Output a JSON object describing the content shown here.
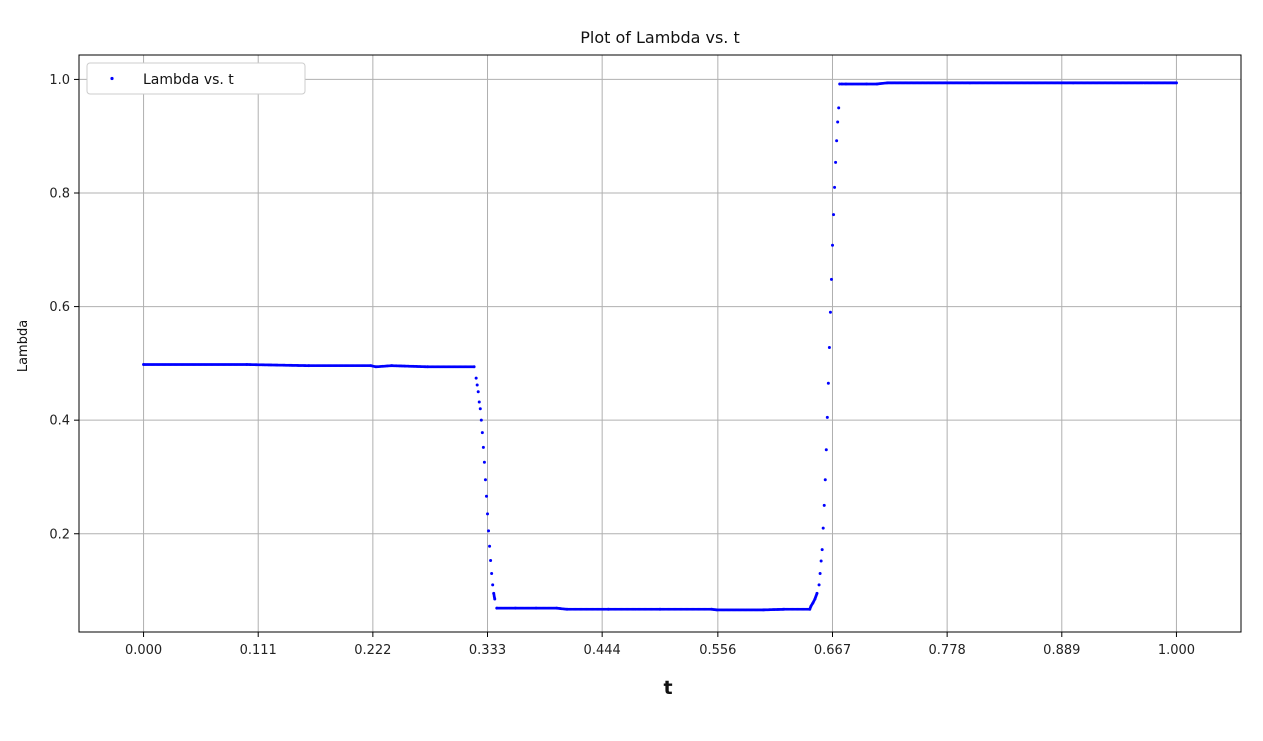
{
  "chart_data": {
    "type": "scatter",
    "title": "Plot of Lambda vs. t",
    "xlabel": "t",
    "ylabel": "Lambda",
    "xlim": [
      -0.0625,
      1.0625
    ],
    "ylim": [
      0.027,
      1.043
    ],
    "grid": true,
    "legend_position": "top-left",
    "x_ticks": [
      0.0,
      0.111,
      0.222,
      0.333,
      0.444,
      0.556,
      0.667,
      0.778,
      0.889,
      1.0
    ],
    "x_tick_labels": [
      "0.000",
      "0.111",
      "0.222",
      "0.333",
      "0.444",
      "0.556",
      "0.667",
      "0.778",
      "0.889",
      "1.000"
    ],
    "y_ticks": [
      0.2,
      0.4,
      0.6,
      0.8,
      1.0
    ],
    "y_tick_labels": [
      "0.2",
      "0.4",
      "0.6",
      "0.8",
      "1.0"
    ],
    "series": [
      {
        "name": "Lambda vs. t",
        "color": "#0000ff",
        "marker": "dot",
        "x": [
          0.0,
          0.1,
          0.16,
          0.22,
          0.225,
          0.24,
          0.275,
          0.32,
          0.322,
          0.323,
          0.324,
          0.325,
          0.326,
          0.327,
          0.328,
          0.329,
          0.33,
          0.331,
          0.332,
          0.333,
          0.334,
          0.335,
          0.336,
          0.337,
          0.338,
          0.339,
          0.34,
          0.342,
          0.36,
          0.38,
          0.4,
          0.41,
          0.45,
          0.5,
          0.55,
          0.555,
          0.6,
          0.62,
          0.645,
          0.646,
          0.648,
          0.65,
          0.652,
          0.654,
          0.655,
          0.656,
          0.657,
          0.658,
          0.659,
          0.66,
          0.661,
          0.662,
          0.663,
          0.664,
          0.665,
          0.666,
          0.667,
          0.668,
          0.669,
          0.67,
          0.671,
          0.672,
          0.673,
          0.674,
          0.676,
          0.68,
          0.7,
          0.71,
          0.72,
          0.8,
          0.9,
          1.0
        ],
        "y": [
          0.498,
          0.498,
          0.496,
          0.496,
          0.494,
          0.496,
          0.494,
          0.494,
          0.474,
          0.462,
          0.45,
          0.432,
          0.42,
          0.4,
          0.378,
          0.352,
          0.326,
          0.295,
          0.266,
          0.235,
          0.205,
          0.178,
          0.153,
          0.13,
          0.11,
          0.095,
          0.085,
          0.069,
          0.069,
          0.069,
          0.069,
          0.067,
          0.067,
          0.067,
          0.067,
          0.066,
          0.066,
          0.067,
          0.067,
          0.072,
          0.078,
          0.085,
          0.095,
          0.11,
          0.13,
          0.152,
          0.172,
          0.21,
          0.25,
          0.295,
          0.348,
          0.405,
          0.465,
          0.528,
          0.59,
          0.648,
          0.708,
          0.762,
          0.81,
          0.854,
          0.892,
          0.925,
          0.95,
          0.992,
          0.992,
          0.992,
          0.992,
          0.992,
          0.994,
          0.994,
          0.994,
          0.994
        ]
      }
    ]
  }
}
